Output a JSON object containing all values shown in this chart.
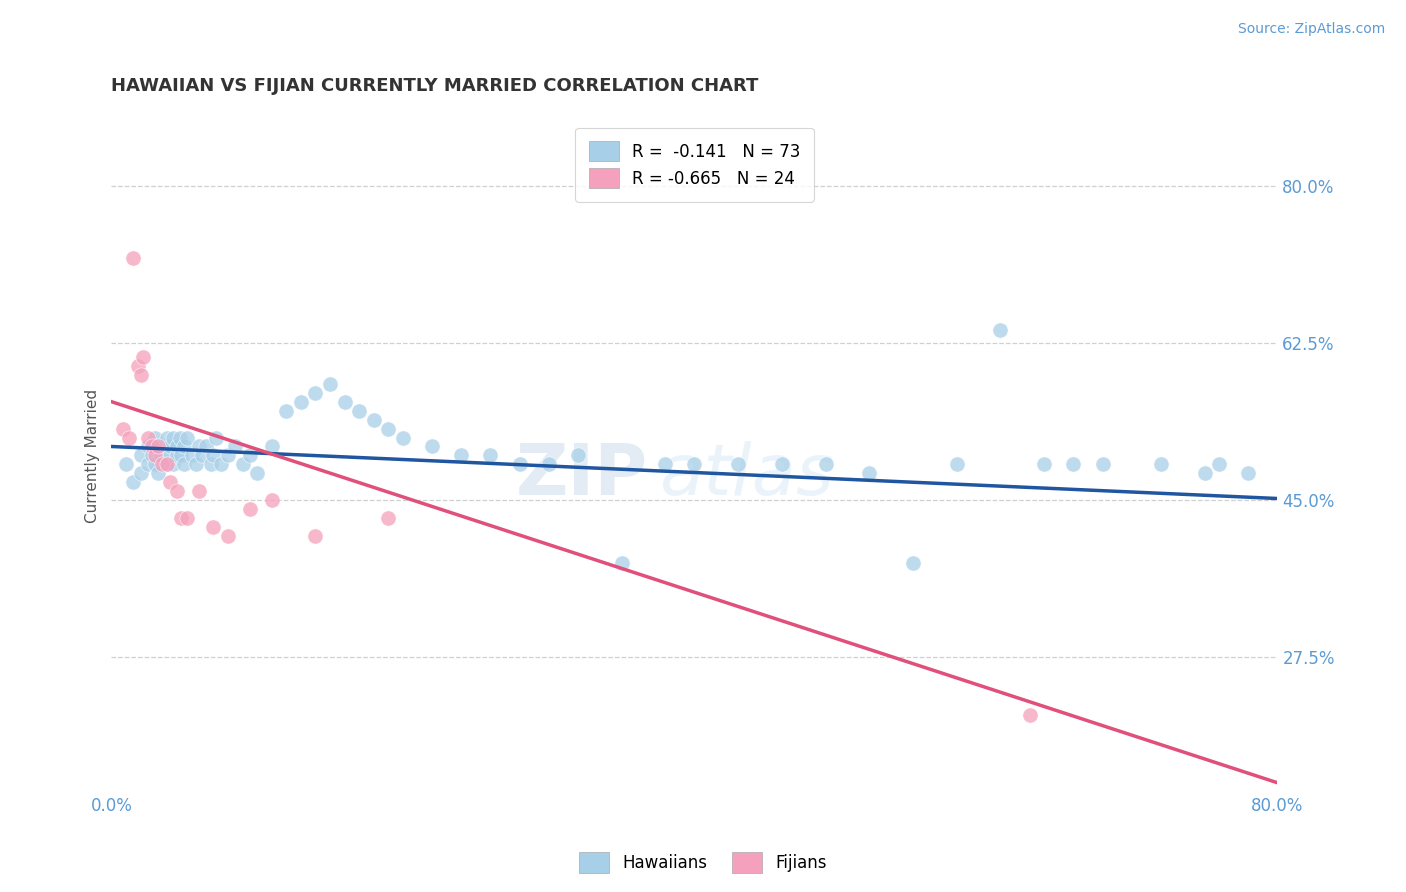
{
  "title": "HAWAIIAN VS FIJIAN CURRENTLY MARRIED CORRELATION CHART",
  "source": "Source: ZipAtlas.com",
  "ylabel_label": "Currently Married",
  "watermark_text": "ZIP",
  "watermark_text2": "atlas",
  "xmin": 0.0,
  "xmax": 0.8,
  "ymin": 0.125,
  "ymax": 0.875,
  "yticks": [
    0.275,
    0.45,
    0.625,
    0.8
  ],
  "ytick_labels": [
    "27.5%",
    "45.0%",
    "62.5%",
    "80.0%"
  ],
  "xtick_labels": [
    "0.0%",
    "80.0%"
  ],
  "xticks": [
    0.0,
    0.8
  ],
  "legend_entries": [
    {
      "label": "R =  -0.141   N = 73",
      "color": "#a8cfe8"
    },
    {
      "label": "R = -0.665   N = 24",
      "color": "#f5a0bc"
    }
  ],
  "hawaiian_scatter_x": [
    0.01,
    0.015,
    0.02,
    0.02,
    0.025,
    0.025,
    0.028,
    0.03,
    0.03,
    0.03,
    0.032,
    0.034,
    0.036,
    0.038,
    0.038,
    0.04,
    0.04,
    0.042,
    0.042,
    0.045,
    0.045,
    0.047,
    0.048,
    0.05,
    0.05,
    0.052,
    0.055,
    0.058,
    0.06,
    0.062,
    0.065,
    0.068,
    0.07,
    0.072,
    0.075,
    0.08,
    0.085,
    0.09,
    0.095,
    0.1,
    0.11,
    0.12,
    0.13,
    0.14,
    0.15,
    0.16,
    0.17,
    0.18,
    0.19,
    0.2,
    0.22,
    0.24,
    0.26,
    0.28,
    0.3,
    0.32,
    0.35,
    0.38,
    0.4,
    0.43,
    0.46,
    0.49,
    0.52,
    0.55,
    0.58,
    0.61,
    0.64,
    0.66,
    0.68,
    0.72,
    0.75,
    0.76,
    0.78
  ],
  "hawaiian_scatter_y": [
    0.49,
    0.47,
    0.5,
    0.48,
    0.51,
    0.49,
    0.5,
    0.52,
    0.49,
    0.51,
    0.48,
    0.5,
    0.51,
    0.52,
    0.49,
    0.5,
    0.51,
    0.49,
    0.52,
    0.5,
    0.51,
    0.52,
    0.5,
    0.49,
    0.51,
    0.52,
    0.5,
    0.49,
    0.51,
    0.5,
    0.51,
    0.49,
    0.5,
    0.52,
    0.49,
    0.5,
    0.51,
    0.49,
    0.5,
    0.48,
    0.51,
    0.55,
    0.56,
    0.57,
    0.58,
    0.56,
    0.55,
    0.54,
    0.53,
    0.52,
    0.51,
    0.5,
    0.5,
    0.49,
    0.49,
    0.5,
    0.38,
    0.49,
    0.49,
    0.49,
    0.49,
    0.49,
    0.48,
    0.38,
    0.49,
    0.64,
    0.49,
    0.49,
    0.49,
    0.49,
    0.48,
    0.49,
    0.48
  ],
  "fijian_scatter_x": [
    0.008,
    0.012,
    0.015,
    0.018,
    0.02,
    0.022,
    0.025,
    0.028,
    0.03,
    0.032,
    0.035,
    0.038,
    0.04,
    0.045,
    0.048,
    0.052,
    0.06,
    0.07,
    0.08,
    0.095,
    0.11,
    0.14,
    0.19,
    0.63
  ],
  "fijian_scatter_y": [
    0.53,
    0.52,
    0.72,
    0.6,
    0.59,
    0.61,
    0.52,
    0.51,
    0.5,
    0.51,
    0.49,
    0.49,
    0.47,
    0.46,
    0.43,
    0.43,
    0.46,
    0.42,
    0.41,
    0.44,
    0.45,
    0.41,
    0.43,
    0.21
  ],
  "hawaiian_line_x": [
    0.0,
    0.8
  ],
  "hawaiian_line_y": [
    0.51,
    0.452
  ],
  "fijian_line_x": [
    0.0,
    0.8
  ],
  "fijian_line_y": [
    0.56,
    0.135
  ],
  "hawaiian_color": "#a8cfe8",
  "fijian_color": "#f5a0bc",
  "hawaiian_line_color": "#2055a0",
  "fijian_line_color": "#e0507a",
  "grid_color": "#d0d0d0",
  "background_color": "#ffffff",
  "title_color": "#333333",
  "title_fontsize": 13,
  "tick_label_color": "#5b9bd5",
  "axis_label_color": "#555555"
}
